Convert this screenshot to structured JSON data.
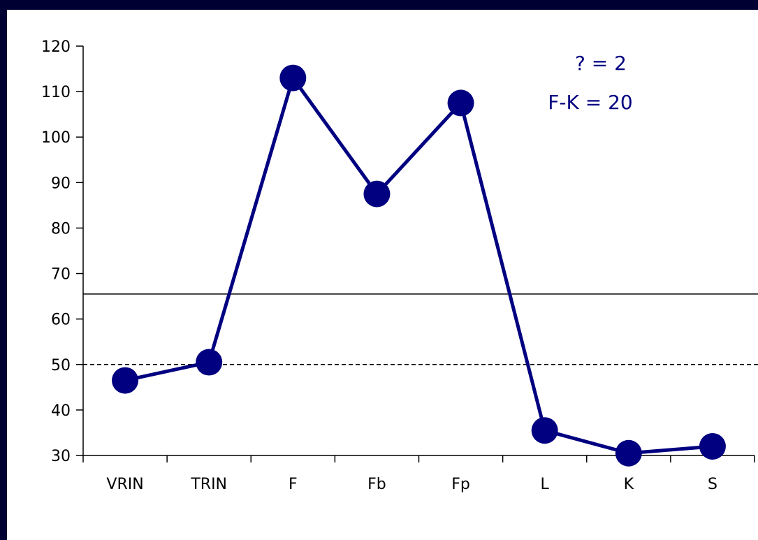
{
  "chart_data": {
    "type": "line",
    "categories": [
      "VRIN",
      "TRIN",
      "F",
      "Fb",
      "Fp",
      "L",
      "K",
      "S"
    ],
    "series": [
      {
        "values": [
          46.5,
          50.5,
          113,
          87.5,
          107.5,
          35.5,
          30.5,
          32
        ]
      }
    ],
    "ylim": [
      30,
      120
    ],
    "yticks": [
      "30",
      "40",
      "50",
      "60",
      "70",
      "80",
      "90",
      "100",
      "110",
      "120"
    ],
    "reference_lines": [
      {
        "value": 65.5,
        "style": "solid"
      },
      {
        "value": 50,
        "style": "dashed"
      }
    ],
    "annotations": [
      "? = 2",
      "F-K = 20"
    ],
    "colors": {
      "series": "#000080",
      "background": "#000033"
    },
    "grid": false,
    "legend": "none"
  }
}
